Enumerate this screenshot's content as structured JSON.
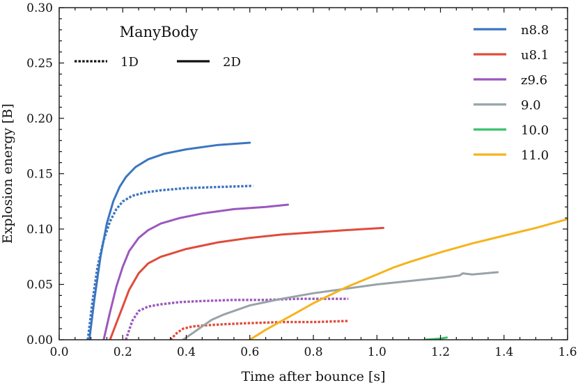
{
  "chart_data": {
    "type": "line",
    "title": "ManyBody",
    "xlabel": "Time after bounce [s]",
    "ylabel": "Explosion energy [B]",
    "xlim": [
      0.0,
      1.6
    ],
    "ylim": [
      0.0,
      0.3
    ],
    "xticks": [
      0.0,
      0.2,
      0.4,
      0.6,
      0.8,
      1.0,
      1.2,
      1.4,
      1.6
    ],
    "xtick_labels": [
      "0.0",
      "0.2",
      "0.4",
      "0.6",
      "0.8",
      "1.0",
      "1.2",
      "1.4",
      "1.6"
    ],
    "yticks": [
      0.0,
      0.05,
      0.1,
      0.15,
      0.2,
      0.25,
      0.3
    ],
    "ytick_labels": [
      "0.00",
      "0.05",
      "0.10",
      "0.15",
      "0.20",
      "0.25",
      "0.30"
    ],
    "style_legend": [
      {
        "label": "1D",
        "style": "dotted"
      },
      {
        "label": "2D",
        "style": "solid"
      }
    ],
    "legend_position": "top-right",
    "series": [
      {
        "name": "n8.8",
        "color": "#3b75c0",
        "style": "solid",
        "x": [
          0.095,
          0.11,
          0.13,
          0.15,
          0.17,
          0.19,
          0.21,
          0.24,
          0.28,
          0.33,
          0.4,
          0.5,
          0.6
        ],
        "y": [
          0.0,
          0.035,
          0.075,
          0.105,
          0.125,
          0.138,
          0.147,
          0.156,
          0.163,
          0.168,
          0.172,
          0.176,
          0.178
        ]
      },
      {
        "name": "n8.8",
        "color": "#3b75c0",
        "style": "dotted",
        "x": [
          0.09,
          0.105,
          0.12,
          0.14,
          0.16,
          0.18,
          0.2,
          0.23,
          0.27,
          0.32,
          0.4,
          0.5,
          0.61
        ],
        "y": [
          0.0,
          0.035,
          0.065,
          0.09,
          0.107,
          0.118,
          0.125,
          0.13,
          0.133,
          0.135,
          0.137,
          0.138,
          0.139
        ]
      },
      {
        "name": "u8.1",
        "color": "#e04b3b",
        "style": "solid",
        "x": [
          0.16,
          0.18,
          0.2,
          0.22,
          0.25,
          0.28,
          0.32,
          0.4,
          0.5,
          0.6,
          0.7,
          0.8,
          0.9,
          1.02
        ],
        "y": [
          0.0,
          0.015,
          0.03,
          0.045,
          0.06,
          0.069,
          0.075,
          0.082,
          0.088,
          0.092,
          0.095,
          0.097,
          0.099,
          0.101
        ]
      },
      {
        "name": "u8.1",
        "color": "#e04b3b",
        "style": "dotted",
        "x": [
          0.35,
          0.37,
          0.39,
          0.42,
          0.46,
          0.52,
          0.6,
          0.7,
          0.8,
          0.91
        ],
        "y": [
          0.0,
          0.006,
          0.01,
          0.012,
          0.013,
          0.014,
          0.015,
          0.016,
          0.016,
          0.017
        ]
      },
      {
        "name": "z9.6",
        "color": "#9a58bc",
        "style": "solid",
        "x": [
          0.14,
          0.16,
          0.18,
          0.2,
          0.22,
          0.25,
          0.28,
          0.32,
          0.38,
          0.45,
          0.55,
          0.65,
          0.72
        ],
        "y": [
          0.0,
          0.025,
          0.048,
          0.066,
          0.08,
          0.092,
          0.099,
          0.105,
          0.11,
          0.114,
          0.118,
          0.12,
          0.122
        ]
      },
      {
        "name": "z9.6",
        "color": "#9a58bc",
        "style": "dotted",
        "x": [
          0.21,
          0.23,
          0.25,
          0.28,
          0.32,
          0.38,
          0.45,
          0.55,
          0.65,
          0.75,
          0.85,
          0.91
        ],
        "y": [
          0.0,
          0.017,
          0.026,
          0.03,
          0.032,
          0.034,
          0.035,
          0.036,
          0.036,
          0.037,
          0.037,
          0.037
        ]
      },
      {
        "name": "9.0",
        "color": "#98a3a6",
        "style": "solid",
        "x": [
          0.39,
          0.42,
          0.45,
          0.48,
          0.52,
          0.56,
          0.6,
          0.65,
          0.7,
          0.8,
          0.9,
          1.0,
          1.1,
          1.2,
          1.26,
          1.27,
          1.3,
          1.38
        ],
        "y": [
          0.0,
          0.006,
          0.012,
          0.018,
          0.023,
          0.027,
          0.031,
          0.034,
          0.037,
          0.042,
          0.046,
          0.05,
          0.053,
          0.056,
          0.058,
          0.06,
          0.059,
          0.061
        ]
      },
      {
        "name": "10.0",
        "color": "#39c26a",
        "style": "solid",
        "x": [
          1.15,
          1.2,
          1.22
        ],
        "y": [
          0.0,
          0.001,
          0.002
        ]
      },
      {
        "name": "11.0",
        "color": "#f6b31c",
        "style": "solid",
        "x": [
          0.6,
          0.65,
          0.7,
          0.75,
          0.8,
          0.85,
          0.9,
          0.95,
          1.0,
          1.05,
          1.1,
          1.2,
          1.3,
          1.4,
          1.5,
          1.6
        ],
        "y": [
          0.0,
          0.009,
          0.017,
          0.025,
          0.033,
          0.04,
          0.047,
          0.053,
          0.059,
          0.065,
          0.07,
          0.079,
          0.087,
          0.094,
          0.101,
          0.109
        ]
      }
    ],
    "color_legend": [
      {
        "label": "n8.8",
        "color": "#3b75c0"
      },
      {
        "label": "u8.1",
        "color": "#e04b3b"
      },
      {
        "label": "z9.6",
        "color": "#9a58bc"
      },
      {
        "label": "9.0",
        "color": "#98a3a6"
      },
      {
        "label": "10.0",
        "color": "#39c26a"
      },
      {
        "label": "11.0",
        "color": "#f6b31c"
      }
    ]
  }
}
